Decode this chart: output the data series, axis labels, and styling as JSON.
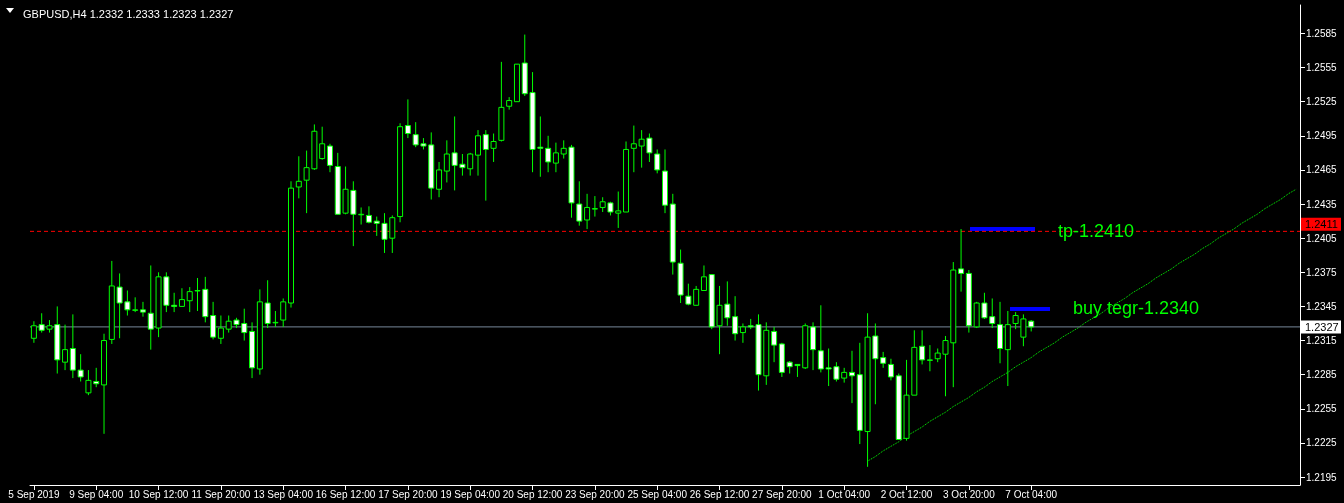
{
  "chart_data": {
    "type": "candlestick",
    "title": "GBPUSD,H4 1.2332 1.2333 1.2323 1.2327",
    "categories": [
      "5 Sep 2019",
      null,
      null,
      null,
      null,
      null,
      null,
      null,
      "9 Sep 04:00",
      null,
      null,
      null,
      null,
      null,
      null,
      null,
      "10 Sep 12:00",
      null,
      null,
      null,
      null,
      null,
      null,
      null,
      "11 Sep 20:00",
      null,
      null,
      null,
      null,
      null,
      null,
      null,
      "13 Sep 04:00",
      null,
      null,
      null,
      null,
      null,
      null,
      null,
      "16 Sep 12:00",
      null,
      null,
      null,
      null,
      null,
      null,
      null,
      "17 Sep 20:00",
      null,
      null,
      null,
      null,
      null,
      null,
      null,
      "19 Sep 04:00",
      null,
      null,
      null,
      null,
      null,
      null,
      null,
      "20 Sep 12:00",
      null,
      null,
      null,
      null,
      null,
      null,
      null,
      "23 Sep 20:00",
      null,
      null,
      null,
      null,
      null,
      null,
      null,
      "25 Sep 04:00",
      null,
      null,
      null,
      null,
      null,
      null,
      null,
      "26 Sep 12:00",
      null,
      null,
      null,
      null,
      null,
      null,
      null,
      "27 Sep 20:00",
      null,
      null,
      null,
      null,
      null,
      null,
      null,
      "1 Oct 04:00",
      null,
      null,
      null,
      null,
      null,
      null,
      null,
      "2 Oct 12:00",
      null,
      null,
      null,
      null,
      null,
      null,
      null,
      "3 Oct 20:00",
      null,
      null,
      null,
      null,
      null,
      null,
      null,
      "7 Oct 04:00",
      null,
      null,
      null,
      null,
      null,
      null,
      null,
      null,
      null,
      null,
      null,
      null,
      null,
      null,
      null,
      null,
      null,
      null,
      null,
      null,
      null,
      null,
      null,
      null,
      null,
      null,
      null,
      null,
      null,
      null,
      null,
      null,
      null,
      null
    ],
    "ohlc": [
      [
        1.2317,
        1.2332,
        1.2313,
        1.2328
      ],
      [
        1.2329,
        1.2339,
        1.2322,
        1.2324
      ],
      [
        1.2325,
        1.2333,
        1.2322,
        1.2328
      ],
      [
        1.2329,
        1.2345,
        1.2286,
        1.2298
      ],
      [
        1.2296,
        1.2329,
        1.2289,
        1.2307
      ],
      [
        1.2308,
        1.2338,
        1.2282,
        1.2289
      ],
      [
        1.2289,
        1.2303,
        1.2279,
        1.2283
      ],
      [
        1.2269,
        1.2289,
        1.2267,
        1.228
      ],
      [
        1.2279,
        1.2291,
        1.2274,
        1.2277
      ],
      [
        1.2276,
        1.2321,
        1.2233,
        1.2315
      ],
      [
        1.2316,
        1.2385,
        1.2312,
        1.2363
      ],
      [
        1.2362,
        1.2374,
        1.2317,
        1.2348
      ],
      [
        1.2349,
        1.2359,
        1.2337,
        1.2342
      ],
      [
        1.2342,
        1.2353,
        1.234,
        1.2342
      ],
      [
        1.2342,
        1.2349,
        1.2336,
        1.234
      ],
      [
        1.2339,
        1.2381,
        1.2307,
        1.2325
      ],
      [
        1.2326,
        1.2375,
        1.2318,
        1.2371
      ],
      [
        1.2371,
        1.2375,
        1.234,
        1.2346
      ],
      [
        1.2346,
        1.2357,
        1.234,
        1.2345
      ],
      [
        1.2345,
        1.2361,
        1.2345,
        1.2351
      ],
      [
        1.235,
        1.2362,
        1.234,
        1.2358
      ],
      [
        1.2359,
        1.237,
        1.2341,
        1.2359
      ],
      [
        1.236,
        1.2371,
        1.2331,
        1.2336
      ],
      [
        1.2337,
        1.2349,
        1.2316,
        1.2318
      ],
      [
        1.2317,
        1.2337,
        1.2312,
        1.2326
      ],
      [
        1.2325,
        1.2337,
        1.2322,
        1.2332
      ],
      [
        1.2333,
        1.2335,
        1.2326,
        1.2329
      ],
      [
        1.233,
        1.2343,
        1.2315,
        1.2322
      ],
      [
        1.2323,
        1.2331,
        1.2282,
        1.2291
      ],
      [
        1.229,
        1.236,
        1.2285,
        1.2349
      ],
      [
        1.2348,
        1.2368,
        1.2326,
        1.233
      ],
      [
        1.2331,
        1.2341,
        1.2327,
        1.2331
      ],
      [
        1.2333,
        1.2352,
        1.2327,
        1.2349
      ],
      [
        1.2348,
        1.2455,
        1.2344,
        1.2449
      ],
      [
        1.245,
        1.2477,
        1.244,
        1.2455
      ],
      [
        1.2456,
        1.2482,
        1.2427,
        1.2467
      ],
      [
        1.2466,
        1.2505,
        1.2465,
        1.2499
      ],
      [
        1.2475,
        1.2503,
        1.2474,
        1.2488
      ],
      [
        1.2486,
        1.2488,
        1.2463,
        1.2469
      ],
      [
        1.2468,
        1.248,
        1.2426,
        1.2426
      ],
      [
        1.2427,
        1.2468,
        1.2426,
        1.2448
      ],
      [
        1.2447,
        1.2455,
        1.2398,
        1.2426
      ],
      [
        1.2426,
        1.2432,
        1.2417,
        1.2426
      ],
      [
        1.2425,
        1.2433,
        1.2418,
        1.2419
      ],
      [
        1.242,
        1.2424,
        1.2407,
        1.2418
      ],
      [
        1.2418,
        1.2427,
        1.2392,
        1.2404
      ],
      [
        1.2405,
        1.2425,
        1.2392,
        1.2423
      ],
      [
        1.2424,
        1.2506,
        1.2419,
        1.2503
      ],
      [
        1.2504,
        1.2527,
        1.2493,
        1.2497
      ],
      [
        1.2496,
        1.2507,
        1.2485,
        1.2487
      ],
      [
        1.2488,
        1.2493,
        1.2483,
        1.2486
      ],
      [
        1.2487,
        1.2498,
        1.2439,
        1.2449
      ],
      [
        1.2448,
        1.2472,
        1.2441,
        1.2465
      ],
      [
        1.2464,
        1.2491,
        1.2454,
        1.2479
      ],
      [
        1.248,
        1.2512,
        1.2447,
        1.2469
      ],
      [
        1.247,
        1.2479,
        1.246,
        1.2467
      ],
      [
        1.2466,
        1.248,
        1.246,
        1.2479
      ],
      [
        1.2478,
        1.25,
        1.246,
        1.2495
      ],
      [
        1.2496,
        1.25,
        1.2438,
        1.2483
      ],
      [
        1.2484,
        1.2497,
        1.2472,
        1.249
      ],
      [
        1.2491,
        1.256,
        1.249,
        1.252
      ],
      [
        1.2521,
        1.2529,
        1.2518,
        1.2526
      ],
      [
        1.2525,
        1.2558,
        1.2525,
        1.2558
      ],
      [
        1.2559,
        1.2584,
        1.253,
        1.2532
      ],
      [
        1.2533,
        1.2551,
        1.2463,
        1.2483
      ],
      [
        1.2485,
        1.2512,
        1.2459,
        1.2484
      ],
      [
        1.2484,
        1.2495,
        1.2463,
        1.2472
      ],
      [
        1.2471,
        1.2489,
        1.2463,
        1.248
      ],
      [
        1.2479,
        1.2491,
        1.2475,
        1.2484
      ],
      [
        1.2485,
        1.2487,
        1.2423,
        1.2436
      ],
      [
        1.2435,
        1.2455,
        1.2416,
        1.242
      ],
      [
        1.2421,
        1.2444,
        1.2413,
        1.2432
      ],
      [
        1.2431,
        1.2442,
        1.2424,
        1.2431
      ],
      [
        1.2432,
        1.2441,
        1.2428,
        1.2437
      ],
      [
        1.2436,
        1.2437,
        1.2425,
        1.2428
      ],
      [
        1.2427,
        1.2446,
        1.2414,
        1.2429
      ],
      [
        1.2428,
        1.249,
        1.2428,
        1.2483
      ],
      [
        1.2484,
        1.2504,
        1.2463,
        1.2488
      ],
      [
        1.2486,
        1.25,
        1.2467,
        1.2492
      ],
      [
        1.2493,
        1.2497,
        1.2472,
        1.248
      ],
      [
        1.2479,
        1.2483,
        1.2462,
        1.2465
      ],
      [
        1.2464,
        1.2483,
        1.2427,
        1.2434
      ],
      [
        1.2435,
        1.2444,
        1.2373,
        1.2384
      ],
      [
        1.2383,
        1.2395,
        1.2348,
        1.2355
      ],
      [
        1.2354,
        1.2365,
        1.2346,
        1.2347
      ],
      [
        1.2346,
        1.2363,
        1.2346,
        1.236
      ],
      [
        1.2359,
        1.2381,
        1.2359,
        1.2371
      ],
      [
        1.2373,
        1.2373,
        1.2325,
        1.2327
      ],
      [
        1.2328,
        1.2363,
        1.2303,
        1.2346
      ],
      [
        1.2347,
        1.2367,
        1.2328,
        1.2335
      ],
      [
        1.2336,
        1.2354,
        1.2315,
        1.2321
      ],
      [
        1.2322,
        1.233,
        1.2313,
        1.2327
      ],
      [
        1.2328,
        1.2334,
        1.2325,
        1.2327
      ],
      [
        1.2329,
        1.2338,
        1.2271,
        1.2285
      ],
      [
        1.2284,
        1.2331,
        1.2276,
        1.2324
      ],
      [
        1.2323,
        1.2327,
        1.2296,
        1.2311
      ],
      [
        1.2312,
        1.2313,
        1.2283,
        1.2287
      ],
      [
        1.2296,
        1.2297,
        1.2286,
        1.2292
      ],
      [
        1.2294,
        1.2294,
        1.2283,
        1.2293
      ],
      [
        1.2291,
        1.233,
        1.229,
        1.2328
      ],
      [
        1.2327,
        1.2331,
        1.2289,
        1.2307
      ],
      [
        1.2306,
        1.2346,
        1.2287,
        1.229
      ],
      [
        1.2291,
        1.2308,
        1.2275,
        1.229
      ],
      [
        1.2292,
        1.2296,
        1.2279,
        1.2281
      ],
      [
        1.2282,
        1.2291,
        1.2278,
        1.2287
      ],
      [
        1.2287,
        1.2306,
        1.226,
        1.2284
      ],
      [
        1.2285,
        1.2313,
        1.2224,
        1.2236
      ],
      [
        1.2235,
        1.2339,
        1.2204,
        1.2318
      ],
      [
        1.2319,
        1.233,
        1.2259,
        1.2299
      ],
      [
        1.23,
        1.2305,
        1.2291,
        1.2295
      ],
      [
        1.2294,
        1.2299,
        1.228,
        1.2283
      ],
      [
        1.2284,
        1.2286,
        1.2228,
        1.2228
      ],
      [
        1.2229,
        1.2298,
        1.2227,
        1.2267
      ],
      [
        1.2267,
        1.2324,
        1.2267,
        1.2309
      ],
      [
        1.231,
        1.2324,
        1.2294,
        1.2298
      ],
      [
        1.2298,
        1.2311,
        1.2288,
        1.2298
      ],
      [
        1.2299,
        1.2308,
        1.2296,
        1.2304
      ],
      [
        1.2303,
        1.2319,
        1.2266,
        1.2315
      ],
      [
        1.2313,
        1.2384,
        1.2274,
        1.2377
      ],
      [
        1.2378,
        1.2413,
        1.2358,
        1.2374
      ],
      [
        1.2374,
        1.2377,
        1.2322,
        1.2328
      ],
      [
        1.2327,
        1.2349,
        1.2326,
        1.2348
      ],
      [
        1.2348,
        1.2357,
        1.2334,
        1.2335
      ],
      [
        1.2336,
        1.2352,
        1.2326,
        1.233
      ],
      [
        1.2329,
        1.2349,
        1.2295,
        1.2308
      ],
      [
        1.2307,
        1.2341,
        1.2275,
        1.2329
      ],
      [
        1.233,
        1.234,
        1.2325,
        1.2337
      ],
      [
        1.2318,
        1.2338,
        1.231,
        1.2334
      ],
      [
        1.2332,
        1.2333,
        1.2323,
        1.2327
      ],
      null,
      null,
      null,
      null,
      null,
      null,
      null,
      null,
      null,
      null,
      null,
      null,
      null,
      null,
      null,
      null,
      null,
      null,
      null,
      null,
      null,
      null,
      null,
      null,
      null,
      null,
      null,
      null,
      null,
      null,
      null,
      null,
      null,
      null
    ],
    "series": [
      {
        "type": "line",
        "color": "#00ff00",
        "line_style": "dotted",
        "marker": "none",
        "values": [
          null,
          null,
          null,
          null,
          null,
          null,
          null,
          null,
          null,
          null,
          null,
          null,
          null,
          null,
          null,
          null,
          null,
          null,
          null,
          null,
          null,
          null,
          null,
          null,
          null,
          null,
          null,
          null,
          null,
          null,
          null,
          null,
          null,
          null,
          null,
          null,
          null,
          null,
          null,
          null,
          null,
          null,
          null,
          null,
          null,
          null,
          null,
          null,
          null,
          null,
          null,
          null,
          null,
          null,
          null,
          null,
          null,
          null,
          null,
          null,
          null,
          null,
          null,
          null,
          null,
          null,
          null,
          null,
          null,
          null,
          null,
          null,
          null,
          null,
          null,
          null,
          null,
          null,
          null,
          null,
          null,
          null,
          null,
          null,
          null,
          null,
          null,
          null,
          null,
          null,
          null,
          null,
          null,
          null,
          null,
          null,
          null,
          null,
          null,
          null,
          null,
          null,
          null,
          null,
          null,
          null,
          null,
          1.2209,
          1.2213,
          1.2218,
          1.2222,
          1.2226,
          1.2231,
          1.2235,
          1.2239,
          1.2244,
          1.2248,
          1.2252,
          1.2257,
          1.2261,
          1.2265,
          1.227,
          1.2274,
          1.2279,
          1.2283,
          1.2287,
          1.2292,
          1.2296,
          1.23,
          1.2305,
          1.2309,
          1.2313,
          1.2318,
          1.2322,
          1.2326,
          1.2331,
          1.2335,
          1.2339,
          1.2344,
          1.2348,
          1.2352,
          1.2357,
          1.2361,
          1.2365,
          1.237,
          1.2374,
          1.2378,
          1.2383,
          1.2387,
          1.2391,
          1.2396,
          1.24,
          1.2405,
          1.2409,
          1.2413,
          1.2418,
          1.2422,
          1.2426,
          1.2431,
          1.2435,
          1.2439,
          1.2444,
          1.2448
        ]
      }
    ],
    "ylim": [
      1.2188,
      1.261
    ],
    "yticks": [
      1.2195,
      1.2225,
      1.2255,
      1.2285,
      1.2315,
      1.2345,
      1.2375,
      1.2405,
      1.2435,
      1.2465,
      1.2495,
      1.2525,
      1.2555,
      1.2585
    ],
    "ref_lines": [
      {
        "axis": "y",
        "value": 1.2411,
        "label": "1.2411",
        "color": "#ff0000",
        "line_style": "dashed"
      },
      {
        "axis": "y",
        "value": 1.2327,
        "label": "1.2327",
        "color": "#778899",
        "line_style": "solid"
      }
    ],
    "annotations": [
      "tp-1.2410",
      "buy tegr-1.2340"
    ],
    "grid": false
  }
}
